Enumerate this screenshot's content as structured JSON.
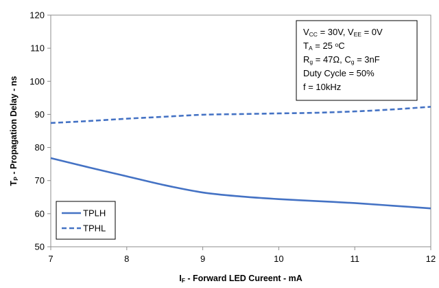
{
  "chart_data": {
    "type": "line",
    "xlabel": {
      "main": "I",
      "sub": "F",
      "rest": " - Forward LED Cureent - mA"
    },
    "ylabel": {
      "main": "T",
      "sub": "P",
      "rest": " - Propagation Delay - ns"
    },
    "xlim": [
      7,
      12
    ],
    "ylim": [
      50,
      120
    ],
    "xticks": [
      7,
      8,
      9,
      10,
      11,
      12
    ],
    "yticks": [
      50,
      60,
      70,
      80,
      90,
      100,
      110,
      120
    ],
    "grid": true,
    "legend_position": "bottom-left",
    "series": [
      {
        "name": "TPLH",
        "style": "solid",
        "color": "#4472C4",
        "x": [
          7,
          7.5,
          8,
          8.5,
          9,
          9.5,
          10,
          10.5,
          11,
          11.5,
          12
        ],
        "y": [
          76.8,
          74.0,
          71.3,
          68.6,
          66.4,
          65.2,
          64.4,
          63.8,
          63.2,
          62.4,
          61.6
        ]
      },
      {
        "name": "TPHL",
        "style": "dashed",
        "color": "#4472C4",
        "x": [
          7,
          7.5,
          8,
          8.5,
          9,
          9.5,
          10,
          10.5,
          11,
          11.5,
          12
        ],
        "y": [
          87.4,
          88.0,
          88.7,
          89.3,
          89.9,
          90.1,
          90.3,
          90.5,
          90.9,
          91.5,
          92.3
        ]
      }
    ],
    "annotations": [
      [
        {
          "t": "V"
        },
        {
          "t": "CC",
          "sub": true
        },
        {
          "t": " = 30V, V"
        },
        {
          "t": "EE",
          "sub": true
        },
        {
          "t": " = 0V"
        }
      ],
      [
        {
          "t": "T"
        },
        {
          "t": "A",
          "sub": true
        },
        {
          "t": " = 25 "
        },
        {
          "t": "o",
          "sup": true
        },
        {
          "t": "C"
        }
      ],
      [
        {
          "t": "R"
        },
        {
          "t": "g",
          "sub": true
        },
        {
          "t": " = 47Ω, C"
        },
        {
          "t": "g",
          "sub": true
        },
        {
          "t": " = 3nF"
        }
      ],
      [
        {
          "t": "Duty Cycle = 50%"
        }
      ],
      [
        {
          "t": "f = 10kHz"
        }
      ]
    ]
  }
}
